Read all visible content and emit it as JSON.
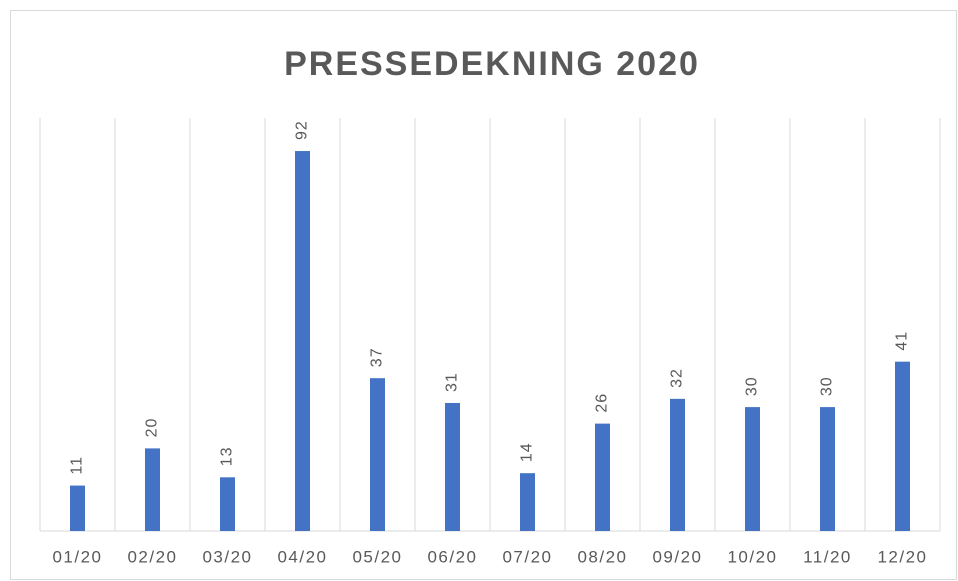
{
  "chart_data": {
    "type": "bar",
    "title": "PRESSEDEKNING 2020",
    "categories": [
      "01/20",
      "02/20",
      "03/20",
      "04/20",
      "05/20",
      "06/20",
      "07/20",
      "08/20",
      "09/20",
      "10/20",
      "11/20",
      "12/20"
    ],
    "values": [
      11,
      20,
      13,
      92,
      37,
      31,
      14,
      26,
      32,
      30,
      30,
      41
    ],
    "color": "#4472c4",
    "ylim": [
      0,
      100
    ],
    "grid": true,
    "data_labels": true
  }
}
